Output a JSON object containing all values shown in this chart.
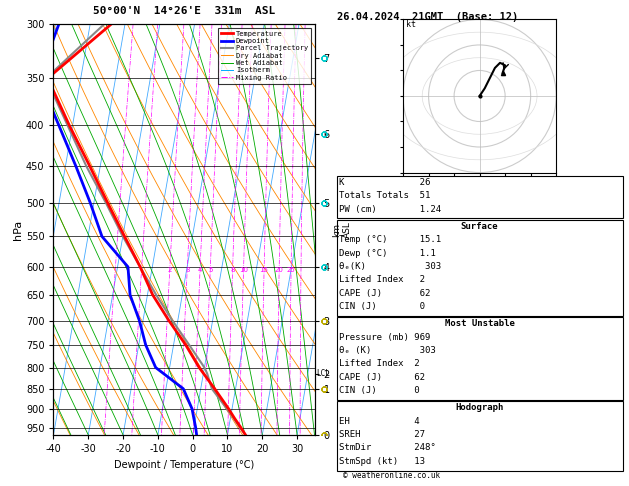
{
  "title_left": "50°00'N  14°26'E  331m  ASL",
  "title_right": "26.04.2024  21GMT  (Base: 12)",
  "xlabel": "Dewpoint / Temperature (°C)",
  "ylabel_left": "hPa",
  "pressure_levels": [
    300,
    350,
    400,
    450,
    500,
    550,
    600,
    650,
    700,
    750,
    800,
    850,
    900,
    950
  ],
  "temp_ticks": [
    -40,
    -30,
    -20,
    -10,
    0,
    10,
    20,
    30
  ],
  "pmin": 300,
  "pmax": 970,
  "xmin": -40,
  "xmax": 35,
  "skew": 17.5,
  "legend_items": [
    {
      "label": "Temperature",
      "color": "#ff0000",
      "lw": 2.0,
      "ls": "-"
    },
    {
      "label": "Dewpoint",
      "color": "#0000ff",
      "lw": 2.0,
      "ls": "-"
    },
    {
      "label": "Parcel Trajectory",
      "color": "#888888",
      "lw": 1.5,
      "ls": "-"
    },
    {
      "label": "Dry Adiabat",
      "color": "#ff8800",
      "lw": 0.7,
      "ls": "-"
    },
    {
      "label": "Wet Adiabat",
      "color": "#00aa00",
      "lw": 0.7,
      "ls": "-"
    },
    {
      "label": "Isotherm",
      "color": "#00aaff",
      "lw": 0.7,
      "ls": "-"
    },
    {
      "label": "Mixing Ratio",
      "color": "#ff00ff",
      "lw": 0.7,
      "ls": "-."
    }
  ],
  "temperature_profile": {
    "pressure": [
      969,
      950,
      925,
      900,
      850,
      800,
      750,
      700,
      650,
      600,
      550,
      500,
      450,
      400,
      350,
      300
    ],
    "temp": [
      15.1,
      13.5,
      11.2,
      9.0,
      4.0,
      -1.5,
      -6.5,
      -12.5,
      -18.5,
      -23.5,
      -29.5,
      -36.0,
      -43.0,
      -51.0,
      -59.5,
      -44.0
    ]
  },
  "dewpoint_profile": {
    "pressure": [
      969,
      950,
      925,
      900,
      850,
      800,
      750,
      700,
      650,
      600,
      550,
      500,
      450,
      400,
      350,
      300
    ],
    "dewp": [
      1.1,
      0.5,
      -0.5,
      -1.5,
      -5.0,
      -14.0,
      -18.0,
      -21.0,
      -25.0,
      -27.0,
      -36.0,
      -41.0,
      -47.0,
      -54.0,
      -62.0,
      -59.0
    ]
  },
  "parcel_profile": {
    "pressure": [
      969,
      950,
      925,
      900,
      850,
      814,
      800,
      750,
      700,
      650,
      600,
      550,
      500,
      450,
      400,
      350,
      300
    ],
    "temp": [
      15.1,
      13.2,
      11.0,
      8.5,
      3.2,
      1.1,
      0.0,
      -5.5,
      -11.5,
      -17.5,
      -23.5,
      -30.0,
      -36.5,
      -44.0,
      -51.5,
      -60.0,
      -46.0
    ]
  },
  "km_ticks": [
    {
      "pressure": 970,
      "km": 0
    },
    {
      "pressure": 850,
      "km": 1
    },
    {
      "pressure": 814,
      "km": 2
    },
    {
      "pressure": 700,
      "km": 3
    },
    {
      "pressure": 600,
      "km": 4
    },
    {
      "pressure": 500,
      "km": 5
    },
    {
      "pressure": 410,
      "km": 6
    },
    {
      "pressure": 330,
      "km": 7
    }
  ],
  "mixing_ratio_labels": [
    2,
    3,
    4,
    5,
    8,
    10,
    15,
    20,
    25
  ],
  "mr_label_pressure": 605,
  "lcl_pressure": 814,
  "stats": {
    "K": 26,
    "Totals_Totals": 51,
    "PW_cm": 1.24,
    "Surface": {
      "Temp_C": 15.1,
      "Dewp_C": 1.1,
      "theta_e_K": 303,
      "Lifted_Index": 2,
      "CAPE_J": 62,
      "CIN_J": 0
    },
    "Most_Unstable": {
      "Pressure_mb": 969,
      "theta_e_K": 303,
      "Lifted_Index": 2,
      "CAPE_J": 62,
      "CIN_J": 0
    },
    "Hodograph": {
      "EH": 4,
      "SREH": 27,
      "StmDir": "248°",
      "StmSpd_kt": 13
    }
  },
  "wind_barbs": [
    {
      "pressure": 330,
      "color": "#00cccc",
      "speed": 35,
      "dir": 280
    },
    {
      "pressure": 410,
      "color": "#00cccc",
      "speed": 28,
      "dir": 270
    },
    {
      "pressure": 500,
      "color": "#00cccc",
      "speed": 22,
      "dir": 260
    },
    {
      "pressure": 600,
      "color": "#00cccc",
      "speed": 16,
      "dir": 250
    },
    {
      "pressure": 700,
      "color": "#bbaa00",
      "speed": 10,
      "dir": 240
    },
    {
      "pressure": 850,
      "color": "#bbaa00",
      "speed": 6,
      "dir": 220
    },
    {
      "pressure": 969,
      "color": "#bbaa00",
      "speed": 4,
      "dir": 210
    }
  ],
  "hodo_u": [
    0,
    2,
    4,
    6,
    8,
    10,
    9
  ],
  "hodo_v": [
    0,
    3,
    7,
    11,
    13,
    12,
    9
  ],
  "watermark": "© weatheronline.co.uk"
}
